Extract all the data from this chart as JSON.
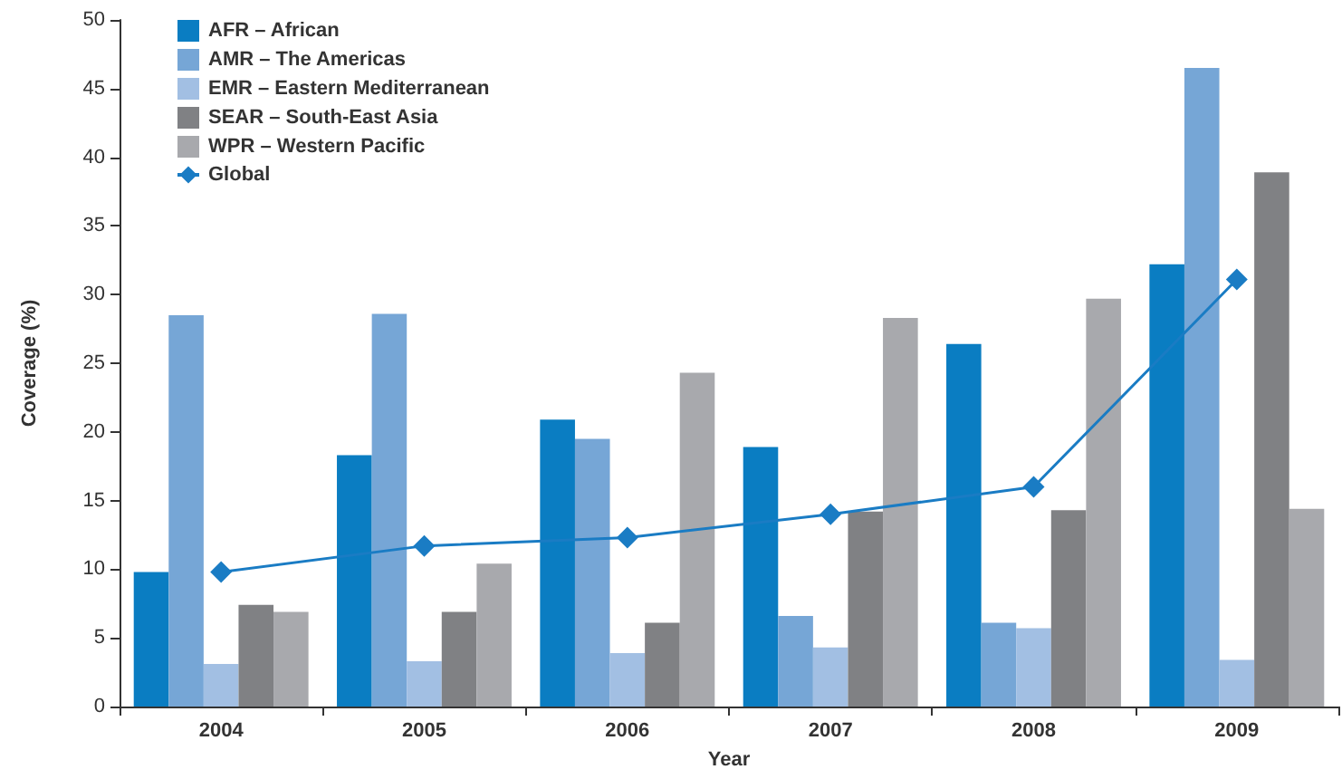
{
  "chart_data": {
    "type": "bar",
    "xlabel": "Year",
    "ylabel": "Coverage (%)",
    "categories": [
      "2004",
      "2005",
      "2006",
      "2007",
      "2008",
      "2009"
    ],
    "series": [
      {
        "name": "AFR – African",
        "color": "#0a7dc2",
        "values": [
          9.8,
          18.3,
          20.9,
          18.9,
          26.4,
          32.2
        ]
      },
      {
        "name": "AMR – The Americas",
        "color": "#76a6d6",
        "values": [
          28.5,
          28.6,
          19.5,
          6.6,
          6.1,
          46.5
        ]
      },
      {
        "name": "EMR – Eastern Mediterranean",
        "color": "#a2bfe3",
        "values": [
          3.1,
          3.3,
          3.9,
          4.3,
          5.7,
          3.4
        ]
      },
      {
        "name": "SEAR – South-East Asia",
        "color": "#808184",
        "values": [
          7.4,
          6.9,
          6.1,
          14.2,
          14.3,
          38.9
        ]
      },
      {
        "name": "WPR – Western Pacific",
        "color": "#a8a9ad",
        "values": [
          6.9,
          10.4,
          24.3,
          28.3,
          29.7,
          14.4
        ]
      },
      {
        "name": "Global",
        "type": "line",
        "color": "#1a7cc4",
        "marker": "diamond",
        "values": [
          9.8,
          11.7,
          12.3,
          14.0,
          16.0,
          31.1
        ]
      }
    ],
    "ylim": [
      0,
      50
    ],
    "yticks": [
      0,
      5,
      10,
      15,
      20,
      25,
      30,
      35,
      40,
      45,
      50
    ],
    "grid": false,
    "legend": "top left"
  }
}
